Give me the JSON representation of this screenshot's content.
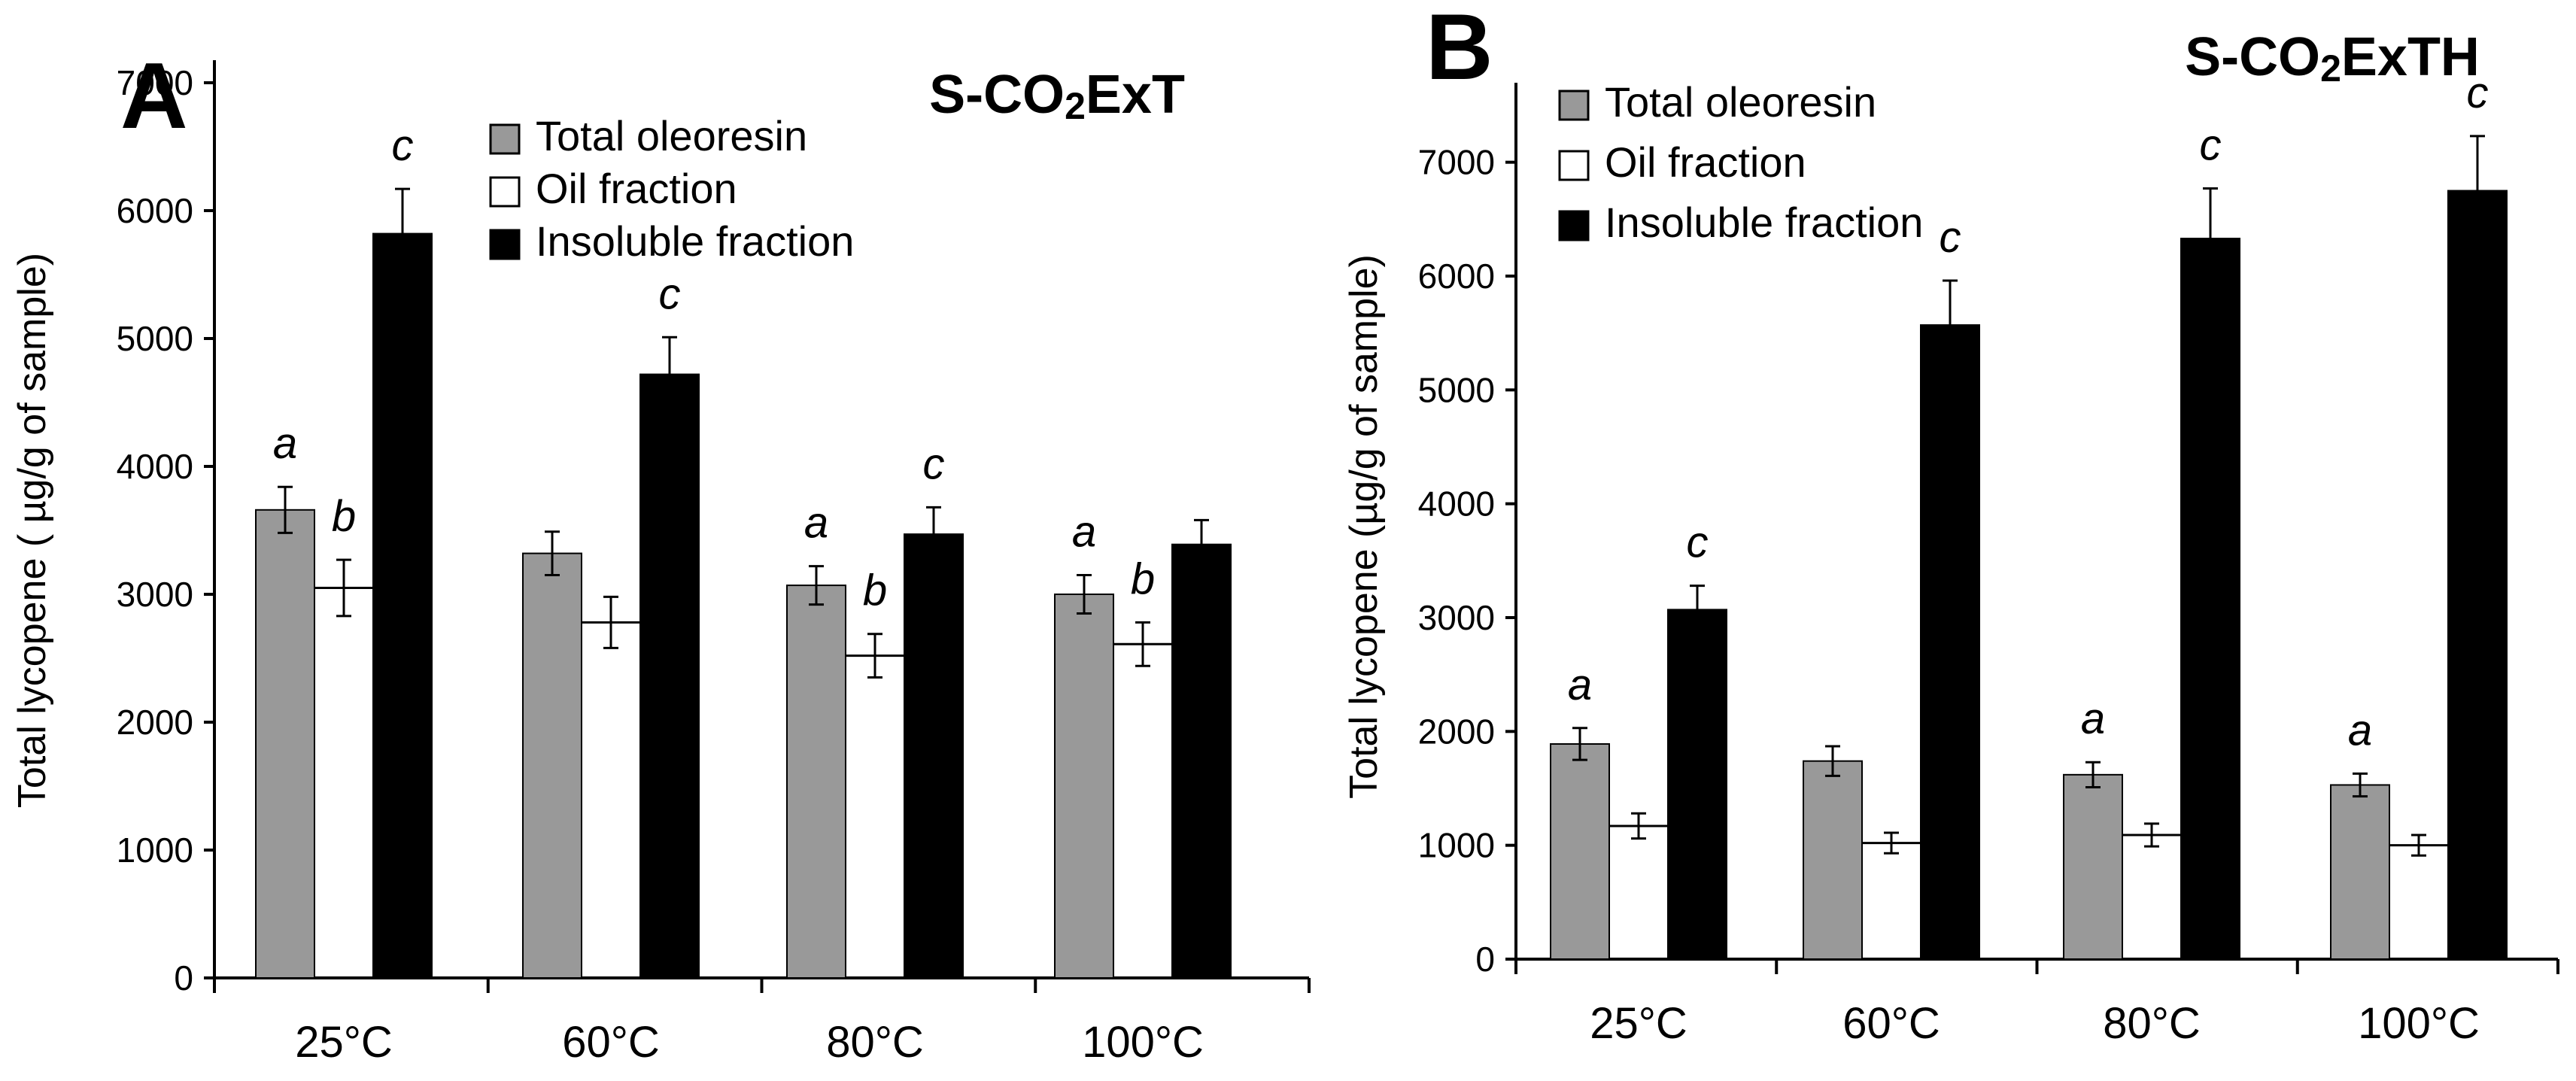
{
  "chart_data": [
    {
      "type": "bar",
      "panel": "A",
      "title": "S-CO2ExT",
      "title_parts": [
        "S-CO",
        "2",
        "ExT"
      ],
      "xlabel": "",
      "ylabel": "Total lycopene (µg/g of sample)",
      "ylabel_parts": [
        "Total lycopene ( ",
        "µ",
        "g/g of sample)"
      ],
      "ylim": [
        0,
        7000
      ],
      "yticks": [
        "0",
        "1000",
        "2000",
        "3000",
        "4000",
        "5000",
        "6000",
        "7000"
      ],
      "categories": [
        "25°C",
        "60°C",
        "80°C",
        "100°C"
      ],
      "legend_position": "top-center",
      "series": [
        {
          "name": "Total oleoresin",
          "color": "#999999",
          "values": [
            3660,
            3320,
            3070,
            3000
          ],
          "errors": [
            180,
            170,
            150,
            150
          ],
          "labels": [
            "a",
            "",
            "a",
            "a"
          ]
        },
        {
          "name": "Oil fraction",
          "color": "#ffffff",
          "values": [
            3050,
            2780,
            2520,
            2610
          ],
          "errors": [
            220,
            200,
            170,
            170
          ],
          "labels": [
            "b",
            "",
            "b",
            "b"
          ]
        },
        {
          "name": "Insoluble fraction",
          "color": "#000000",
          "values": [
            5820,
            4720,
            3470,
            3390
          ],
          "errors": [
            350,
            290,
            210,
            190
          ],
          "labels": [
            "c",
            "c",
            "c",
            ""
          ]
        }
      ]
    },
    {
      "type": "bar",
      "panel": "B",
      "title": "S-CO2ExTH",
      "title_parts": [
        "S-CO",
        "2",
        "ExTH"
      ],
      "xlabel": "",
      "ylabel": "Total lycopene (µg/g of sample)",
      "ylabel_parts": [
        "Total lycopene (",
        "µ",
        "g/g of sample)"
      ],
      "ylim": [
        0,
        7500
      ],
      "yticks": [
        "0",
        "1000",
        "2000",
        "3000",
        "4000",
        "5000",
        "6000",
        "7000"
      ],
      "categories": [
        "25°C",
        "60°C",
        "80°C",
        "100°C"
      ],
      "legend_position": "top-left",
      "series": [
        {
          "name": "Total oleoresin",
          "color": "#999999",
          "values": [
            1890,
            1740,
            1620,
            1530
          ],
          "errors": [
            140,
            130,
            110,
            100
          ],
          "labels": [
            "a",
            "",
            "a",
            "a"
          ]
        },
        {
          "name": "Oil fraction",
          "color": "#ffffff",
          "values": [
            1170,
            1020,
            1090,
            1000
          ],
          "errors": [
            110,
            90,
            100,
            90
          ],
          "labels": [
            "",
            "",
            "",
            ""
          ]
        },
        {
          "name": "Insoluble fraction",
          "color": "#000000",
          "values": [
            3070,
            5570,
            6330,
            6750
          ],
          "errors": [
            210,
            390,
            440,
            480
          ],
          "labels": [
            "c",
            "c",
            "c",
            "c"
          ]
        }
      ]
    }
  ]
}
